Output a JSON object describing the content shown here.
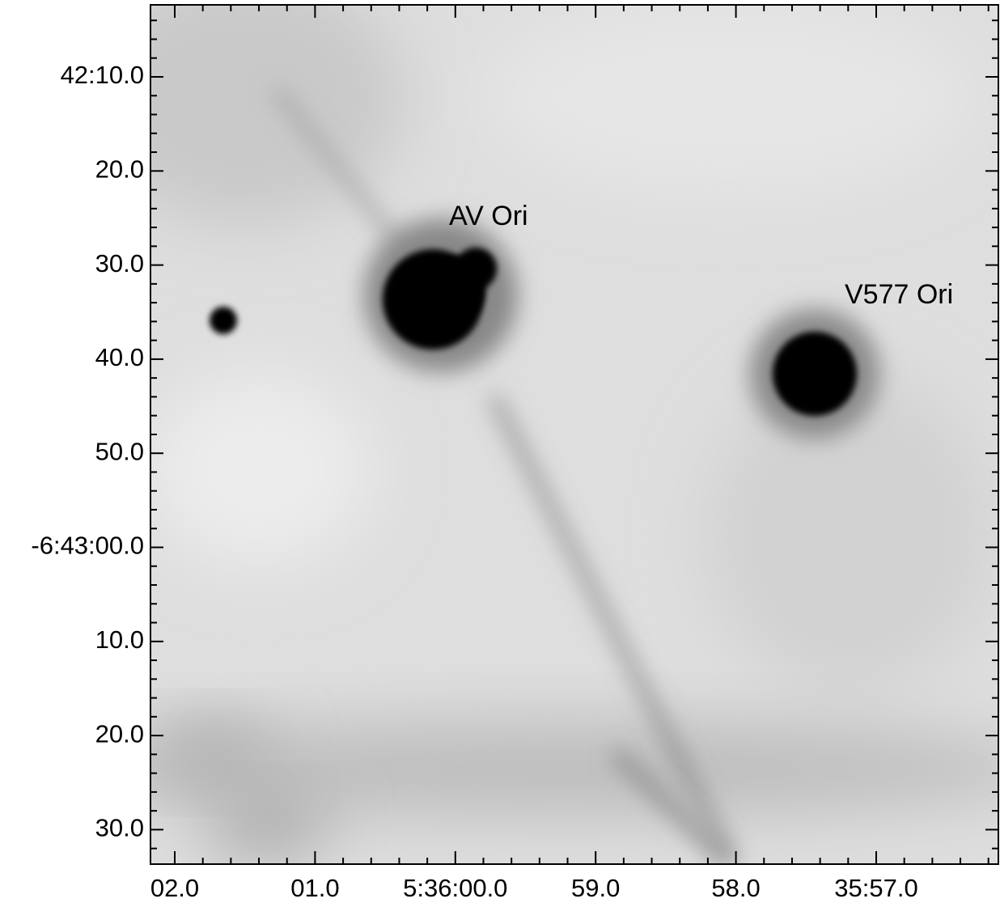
{
  "image": {
    "annotations": [
      "AV Ori",
      "V577 Ori"
    ],
    "y_tick_labels": [
      "42:10.0",
      "20.0",
      "30.0",
      "40.0",
      "50.0",
      "-6:43:00.0",
      "10.0",
      "20.0",
      "30.0"
    ],
    "x_tick_labels": [
      "02.0",
      "01.0",
      "5:36:00.0",
      "59.0",
      "58.0",
      "35:57.0"
    ]
  }
}
